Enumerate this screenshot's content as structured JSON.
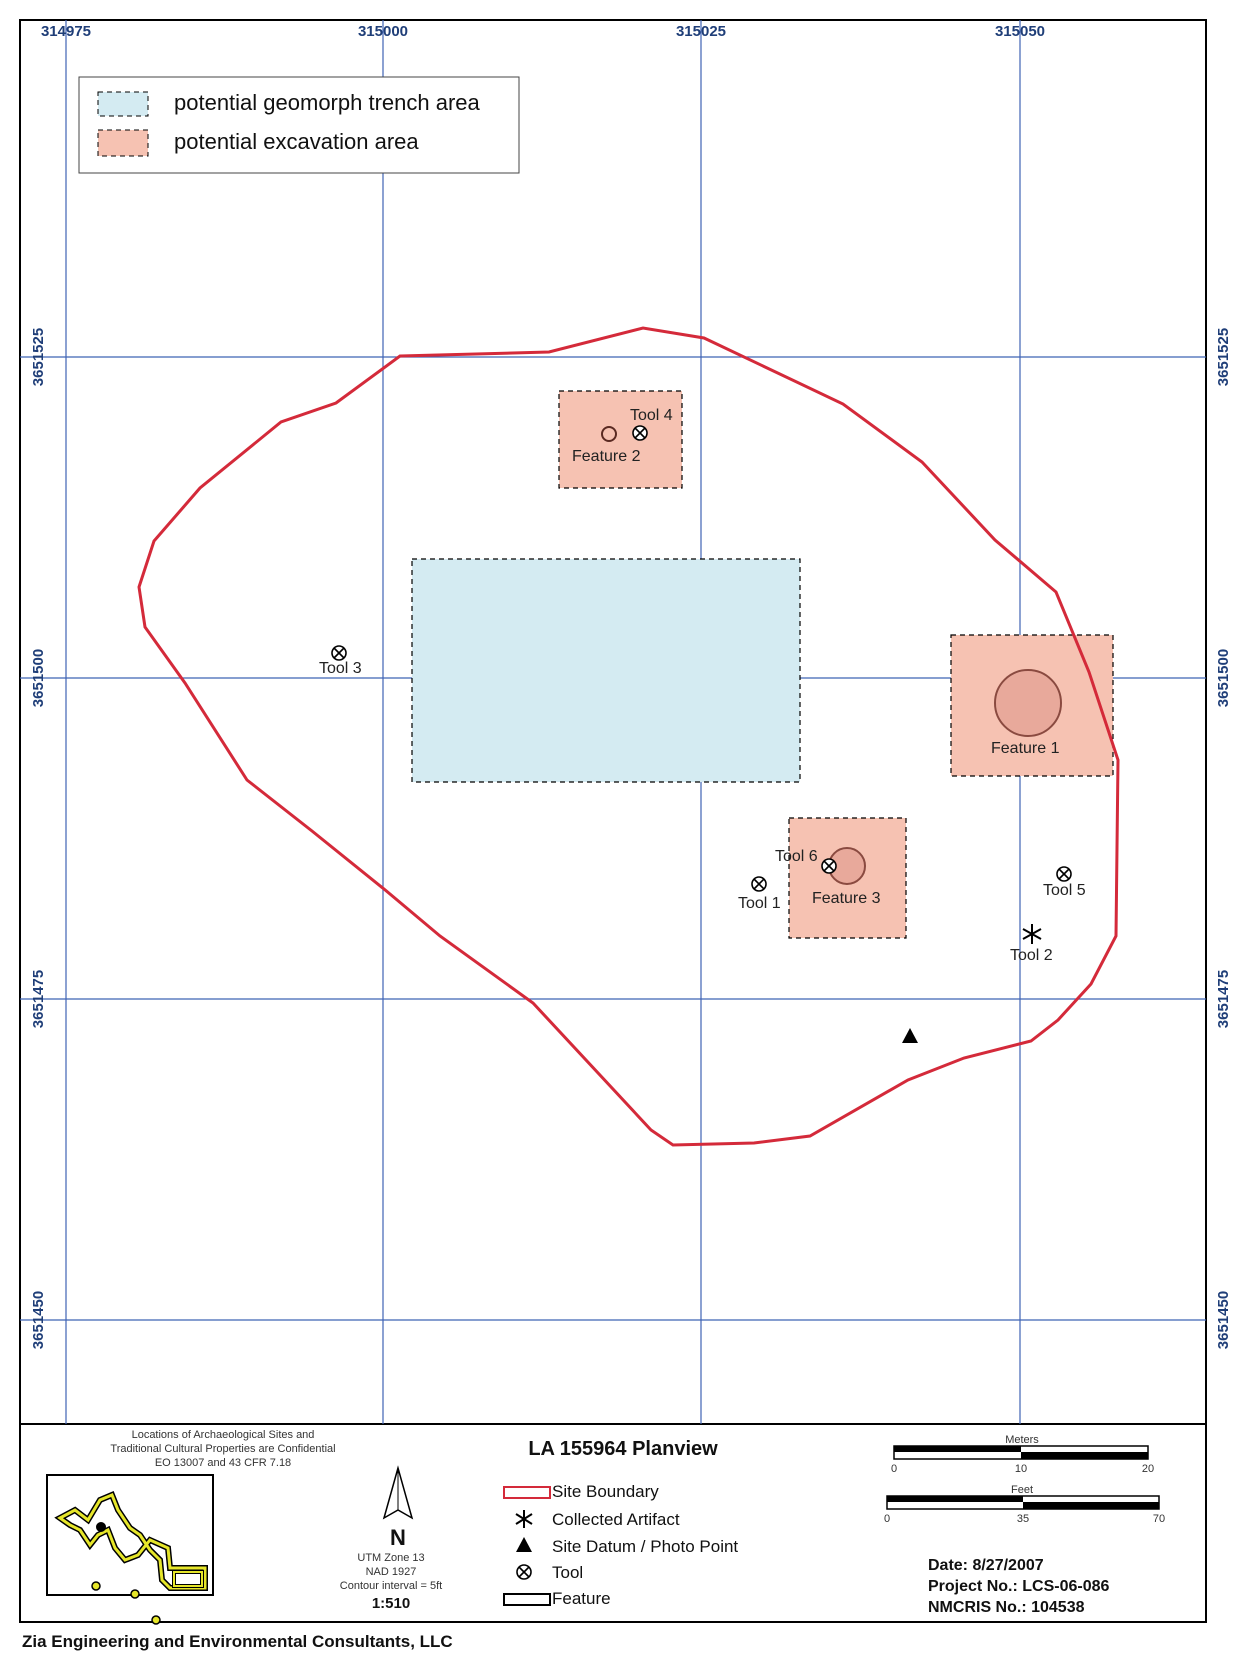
{
  "grid": {
    "x_ticks": [
      "314975",
      "315000",
      "315025",
      "315050"
    ],
    "y_ticks": [
      "3651525",
      "3651500",
      "3651475",
      "3651450"
    ],
    "line_color": "#3f63b5"
  },
  "legend": {
    "geomorph_label": "potential geomorph trench area",
    "excavation_label": "potential excavation area",
    "geomorph_color": "#d4ebf2",
    "excavation_color": "#f6c2b2"
  },
  "colors": {
    "boundary": "#d42a3a"
  },
  "map_labels": {
    "tool1": "Tool 1",
    "tool2": "Tool 2",
    "tool3": "Tool 3",
    "tool4": "Tool 4",
    "tool5": "Tool 5",
    "tool6": "Tool 6",
    "feature1": "Feature 1",
    "feature2": "Feature 2",
    "feature3": "Feature 3"
  },
  "footer": {
    "confidential_line1": "Locations of Archaeological Sites and",
    "confidential_line2": "Traditional Cultural Properties are Confidential",
    "confidential_line3": "EO 13007 and 43 CFR 7.18",
    "title": "LA 155964 Planview",
    "north": "N",
    "utm": "UTM Zone 13",
    "datum": "NAD 1927",
    "contour": "Contour interval = 5ft",
    "scale": "1:510",
    "key_site_boundary": "Site Boundary",
    "key_collected_artifact": "Collected Artifact",
    "key_site_datum": "Site Datum / Photo Point",
    "key_tool": "Tool",
    "key_feature": "Feature",
    "meters_label": "Meters",
    "meters_ticks": [
      "0",
      "10",
      "20"
    ],
    "feet_label": "Feet",
    "feet_ticks": [
      "0",
      "35",
      "70"
    ],
    "date": "Date: 8/27/2007",
    "project": "Project No.: LCS-06-086",
    "nmcris": "NMCRIS No.: 104538",
    "company": "Zia Engineering and Environmental Consultants, LLC"
  }
}
